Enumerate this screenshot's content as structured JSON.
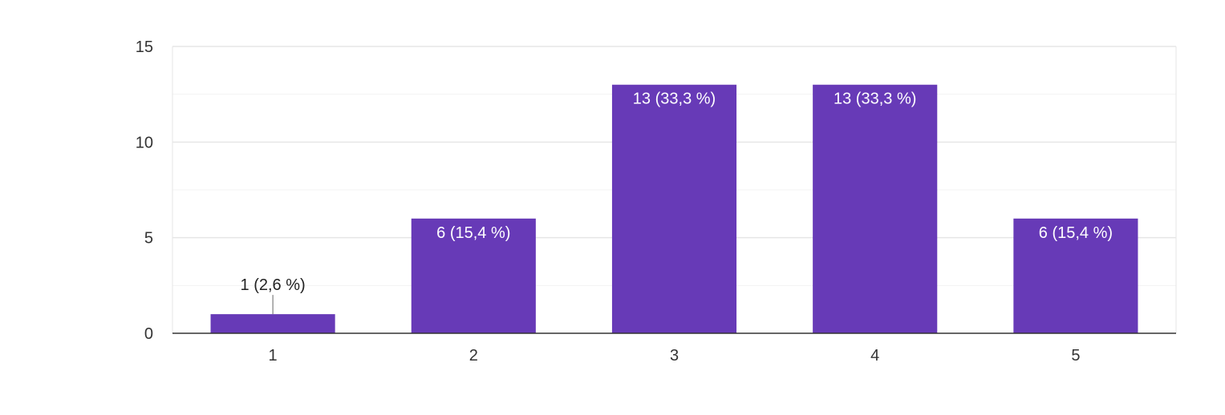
{
  "chart_data": {
    "type": "bar",
    "title": "",
    "xlabel": "",
    "ylabel": "",
    "categories": [
      "1",
      "2",
      "3",
      "4",
      "5"
    ],
    "values": [
      1,
      6,
      13,
      13,
      6
    ],
    "data_labels": [
      "1 (2,6 %)",
      "6 (15,4 %)",
      "13 (33,3 %)",
      "13 (33,3 %)",
      "6 (15,4 %)"
    ],
    "ylim": [
      0,
      15
    ],
    "y_ticks": [
      "0",
      "5",
      "10",
      "15"
    ],
    "y_tick_values": [
      0,
      5,
      10,
      15
    ],
    "grid": true,
    "legend": "none",
    "colors": {
      "bar": "#673AB7",
      "grid_major": "#e6e6e6",
      "grid_minor": "#f3f3f3",
      "axis": "#333333"
    }
  }
}
